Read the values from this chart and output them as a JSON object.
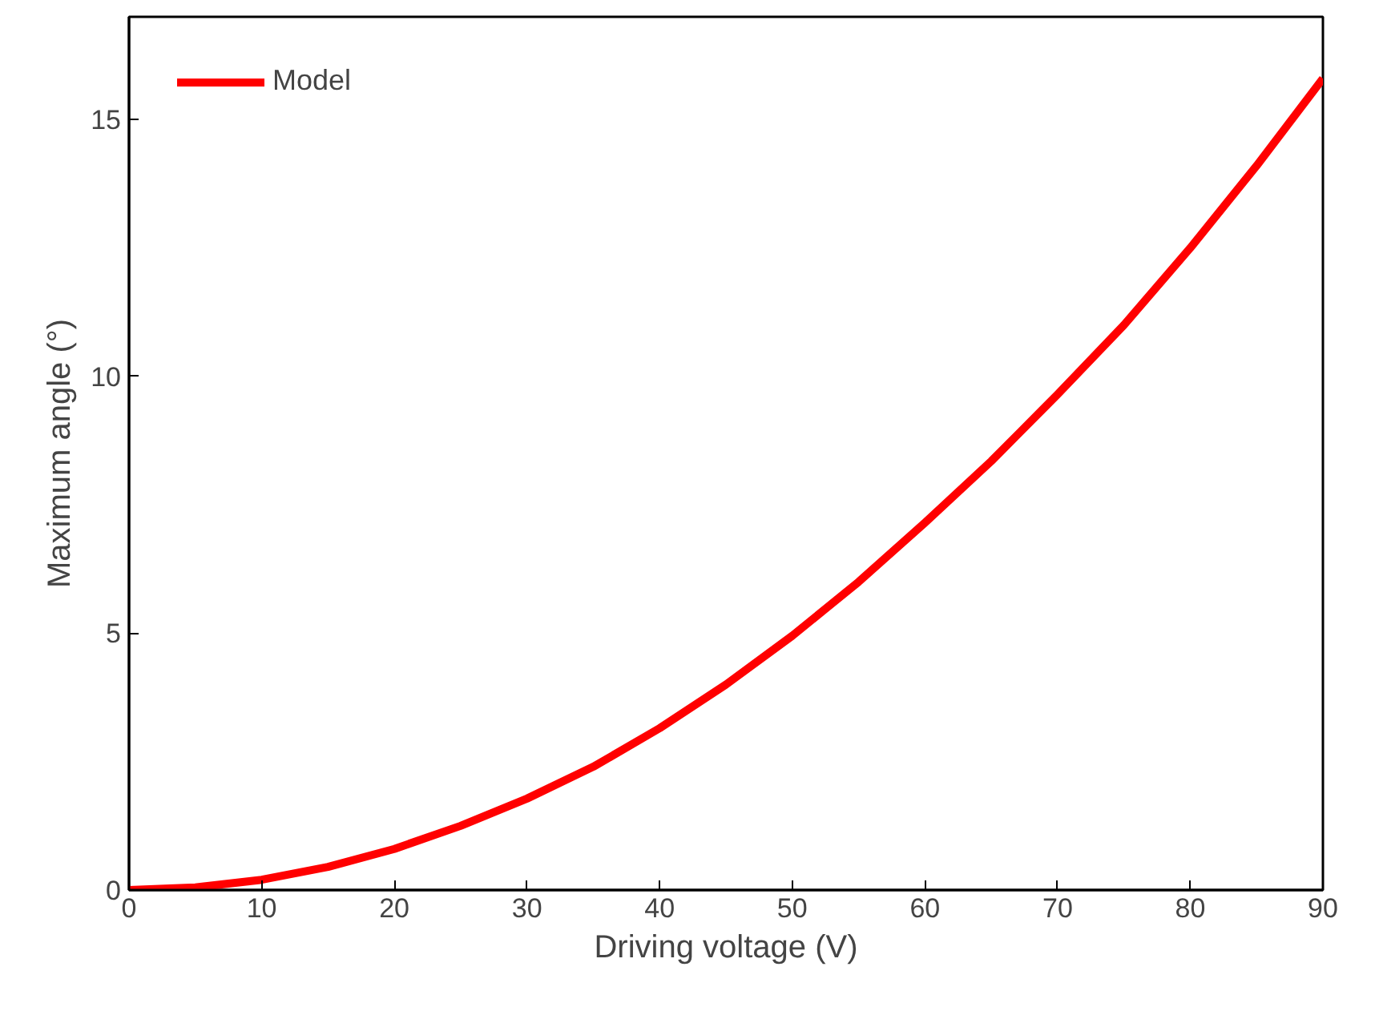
{
  "chart_data": {
    "type": "line",
    "xlabel": "Driving voltage (V)",
    "ylabel": "Maximum angle (°)",
    "x": [
      0,
      5,
      10,
      15,
      20,
      25,
      30,
      35,
      40,
      45,
      50,
      55,
      60,
      65,
      70,
      75,
      80,
      85,
      90
    ],
    "series": [
      {
        "name": "Model",
        "color": "#ff0000",
        "values": [
          0,
          0.05,
          0.2,
          0.45,
          0.8,
          1.25,
          1.78,
          2.4,
          3.15,
          4.0,
          4.95,
          6.0,
          7.15,
          8.35,
          9.65,
          11.0,
          12.5,
          14.1,
          15.8
        ]
      }
    ],
    "xlim": [
      0,
      90
    ],
    "ylim": [
      0,
      17
    ],
    "xticks": [
      0,
      10,
      20,
      30,
      40,
      50,
      60,
      70,
      80,
      90
    ],
    "yticks": [
      0,
      5,
      10,
      15
    ],
    "legend": "top left",
    "grid": false,
    "marker": "none",
    "line_style": "solid"
  }
}
